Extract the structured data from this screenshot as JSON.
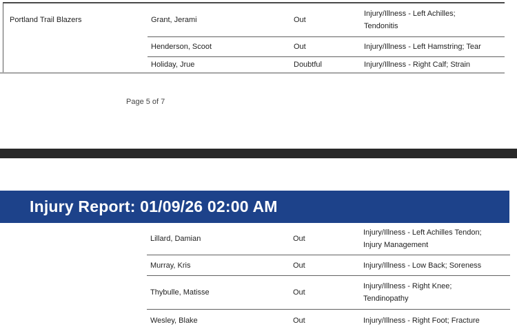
{
  "colors": {
    "header_bg": "#1d428a",
    "header_text": "#ffffff",
    "page_break_band": "#282828"
  },
  "page_top": {
    "team": "Portland Trail Blazers",
    "rows": [
      {
        "player": "Grant, Jerami",
        "status": "Out",
        "reason_line1": "Injury/Illness - Left Achilles;",
        "reason_line2": "Tendonitis"
      },
      {
        "player": "Henderson, Scoot",
        "status": "Out",
        "reason_line1": "Injury/Illness - Left Hamstring; Tear",
        "reason_line2": ""
      },
      {
        "player": "Holiday, Jrue",
        "status": "Doubtful",
        "reason_line1": "Injury/Illness - Right Calf; Strain",
        "reason_line2": ""
      }
    ],
    "page_number": "Page 5 of 7"
  },
  "page_bottom": {
    "header_title": "Injury Report: 01/09/26 02:00 AM",
    "rows": [
      {
        "player": "Lillard, Damian",
        "status": "Out",
        "reason_line1": "Injury/Illness - Left Achilles Tendon;",
        "reason_line2": "Injury Management"
      },
      {
        "player": "Murray, Kris",
        "status": "Out",
        "reason_line1": "Injury/Illness - Low Back; Soreness",
        "reason_line2": ""
      },
      {
        "player": "Thybulle, Matisse",
        "status": "Out",
        "reason_line1": "Injury/Illness - Right Knee;",
        "reason_line2": "Tendinopathy"
      },
      {
        "player": "Wesley, Blake",
        "status": "Out",
        "reason_line1": "Injury/Illness - Right Foot; Fracture",
        "reason_line2": ""
      }
    ]
  }
}
